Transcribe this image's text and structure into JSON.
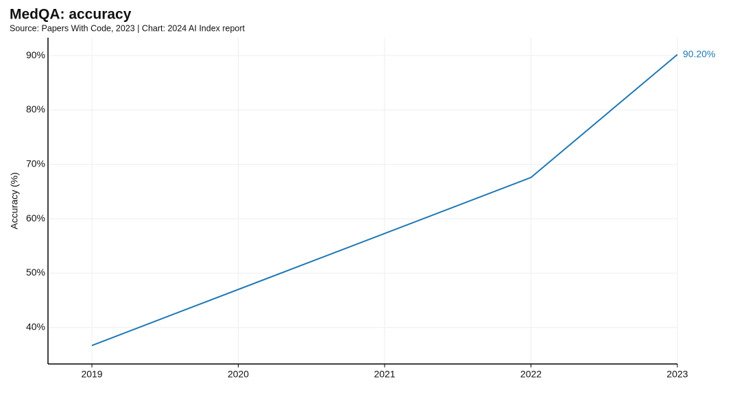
{
  "chart_data": {
    "type": "line",
    "title": "MedQA: accuracy",
    "subtitle": "Source: Papers With Code, 2023 | Chart: 2024 AI Index report",
    "y_label": "Accuracy (%)",
    "x": [
      2019,
      2022,
      2023
    ],
    "series": [
      {
        "name": "MedQA accuracy",
        "color": "#1f77b4",
        "values": [
          36.7,
          67.6,
          90.2
        ],
        "value_labels": [
          null,
          null,
          "90.20%"
        ]
      }
    ],
    "xlim": [
      2018.7,
      2023
    ],
    "xticks": [
      2019,
      2020,
      2021,
      2022,
      2023
    ],
    "ylim": [
      33.3,
      93.3
    ],
    "yticks": [
      {
        "value": 40,
        "label": "40%"
      },
      {
        "value": 50,
        "label": "50%"
      },
      {
        "value": 60,
        "label": "60%"
      },
      {
        "value": 70,
        "label": "70%"
      },
      {
        "value": 80,
        "label": "80%"
      },
      {
        "value": 90,
        "label": "90%"
      }
    ],
    "grid": true
  }
}
